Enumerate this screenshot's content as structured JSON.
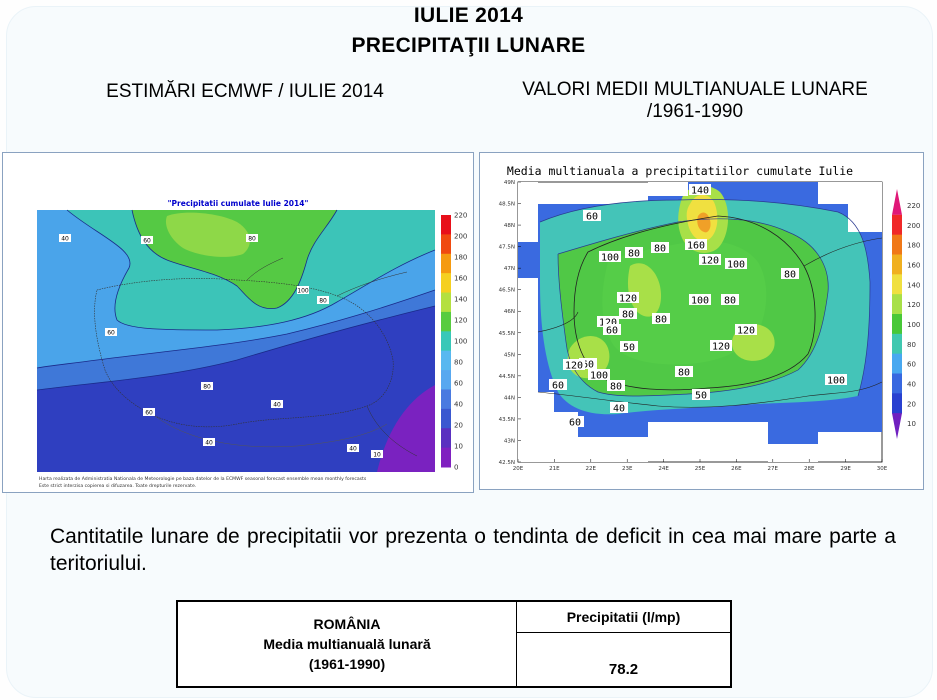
{
  "header": {
    "title_line1": "IULIE 2014",
    "title_line2": "PRECIPITAŢII LUNARE",
    "left_subtitle": "ESTIMĂRI ECMWF / IULIE 2014",
    "right_subtitle_line1": "VALORI MEDII MULTIANUALE LUNARE",
    "right_subtitle_line2": "/1961-1990"
  },
  "left_map": {
    "title": "\"Precipitatii cumulate Iulie 2014\"",
    "footer_line1": "Harta realizata de Administratia Nationala de Meteorologie pe baza datelor de la ECMWF seasonal forecast ensemble mean monthly forecasts",
    "footer_line2": "Este strict interzisa copierea si difuzarea. Toate drepturile rezervate.",
    "contour_labels": [
      "40",
      "60",
      "80",
      "100",
      "80",
      "60",
      "80",
      "60",
      "40",
      "40",
      "40",
      "20",
      "10"
    ],
    "legend_values": [
      "220",
      "200",
      "180",
      "160",
      "140",
      "120",
      "100",
      "80",
      "60",
      "40",
      "20",
      "10",
      "0"
    ],
    "legend_colors": [
      "#e8101a",
      "#f04a10",
      "#f59a10",
      "#f5d020",
      "#b4e040",
      "#58cc40",
      "#38c8b8",
      "#58b8f0",
      "#58a8f0",
      "#4a7ae0",
      "#3a58d0",
      "#5a30c0",
      "#8020c0"
    ]
  },
  "right_map": {
    "title": "Media multianuala a precipitatiilor cumulate Iulie",
    "lat_labels": [
      "49N",
      "48.5N",
      "48N",
      "47.5N",
      "47N",
      "46.5N",
      "46N",
      "45.5N",
      "45N",
      "44.5N",
      "44N",
      "43.5N",
      "43N",
      "42.5N"
    ],
    "lon_labels": [
      "20E",
      "21E",
      "22E",
      "23E",
      "24E",
      "25E",
      "26E",
      "27E",
      "28E",
      "29E",
      "30E"
    ],
    "contour_labels": [
      "140",
      "160",
      "60",
      "100",
      "80",
      "80",
      "120",
      "100",
      "120",
      "80",
      "100",
      "80",
      "80",
      "120",
      "60",
      "80",
      "120",
      "50",
      "100",
      "60",
      "100",
      "80",
      "120",
      "120",
      "60",
      "40",
      "80",
      "80",
      "50",
      "60"
    ],
    "legend_values": [
      "220",
      "200",
      "180",
      "160",
      "140",
      "120",
      "100",
      "80",
      "60",
      "40",
      "20",
      "10"
    ],
    "legend_colors": [
      "#e01878",
      "#f02828",
      "#f07818",
      "#f0b020",
      "#f0e040",
      "#a8e048",
      "#48c838",
      "#40c8b0",
      "#48a8f0",
      "#3868e0",
      "#2840d0",
      "#7020c0"
    ]
  },
  "paragraph": "Cantitatile lunare de precipitatii vor prezenta o tendinta de deficit in cea mai mare parte a teritoriului.",
  "table": {
    "region": "ROMÂNIA",
    "row_label_line1": "Media multianuală lunară",
    "row_label_line2": "(1961-1990)",
    "column_header": "Precipitatii (l/mp)",
    "value": "78.2"
  }
}
